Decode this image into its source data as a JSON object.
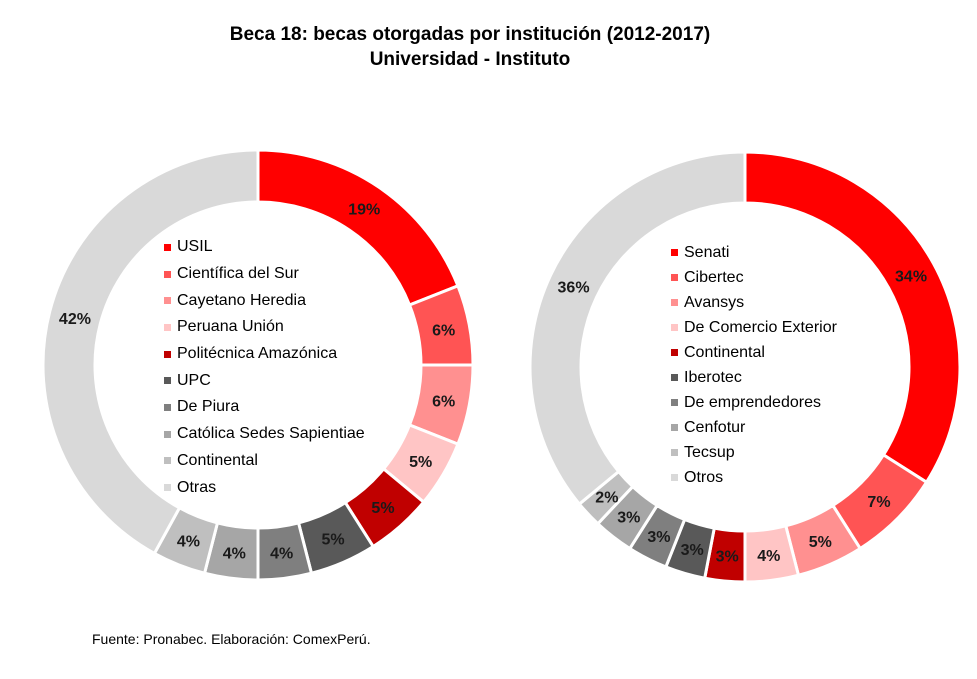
{
  "title": "Beca 18: becas otorgadas por institución (2012-2017)",
  "subtitle": "Universidad - Instituto",
  "footer": "Fuente: Pronabec. Elaboración: ComexPerú.",
  "chart_data": [
    {
      "type": "donut",
      "categories": [
        "USIL",
        "Científica del Sur",
        "Cayetano Heredia",
        "Peruana Unión",
        "Politécnica Amazónica",
        "UPC",
        "De Piura",
        "Católica Sedes Sapientiae",
        "Continental",
        "Otras"
      ],
      "values": [
        19,
        6,
        6,
        5,
        5,
        5,
        4,
        4,
        4,
        42
      ],
      "labels": [
        "19%",
        "6%",
        "6%",
        "5%",
        "5%",
        "5%",
        "4%",
        "4%",
        "4%",
        "42%"
      ],
      "colors": [
        "#FF0000",
        "#FF5454",
        "#FF9090",
        "#FFC5C5",
        "#C00000",
        "#595959",
        "#7F7F7F",
        "#A6A6A6",
        "#BFBFBF",
        "#D9D9D9"
      ],
      "legend": "center"
    },
    {
      "type": "donut",
      "categories": [
        "Senati",
        "Cibertec",
        "Avansys",
        "De Comercio Exterior",
        "Continental",
        "Iberotec",
        "De emprendedores",
        "Cenfotur",
        "Tecsup",
        "Otros"
      ],
      "values": [
        34,
        7,
        5,
        4,
        3,
        3,
        3,
        3,
        2,
        36
      ],
      "labels": [
        "34%",
        "7%",
        "5%",
        "4%",
        "3%",
        "3%",
        "3%",
        "3%",
        "2%",
        "36%"
      ],
      "colors": [
        "#FF0000",
        "#FF5454",
        "#FF9090",
        "#FFC5C5",
        "#C00000",
        "#595959",
        "#7F7F7F",
        "#A6A6A6",
        "#BFBFBF",
        "#D9D9D9"
      ],
      "legend": "center"
    }
  ]
}
